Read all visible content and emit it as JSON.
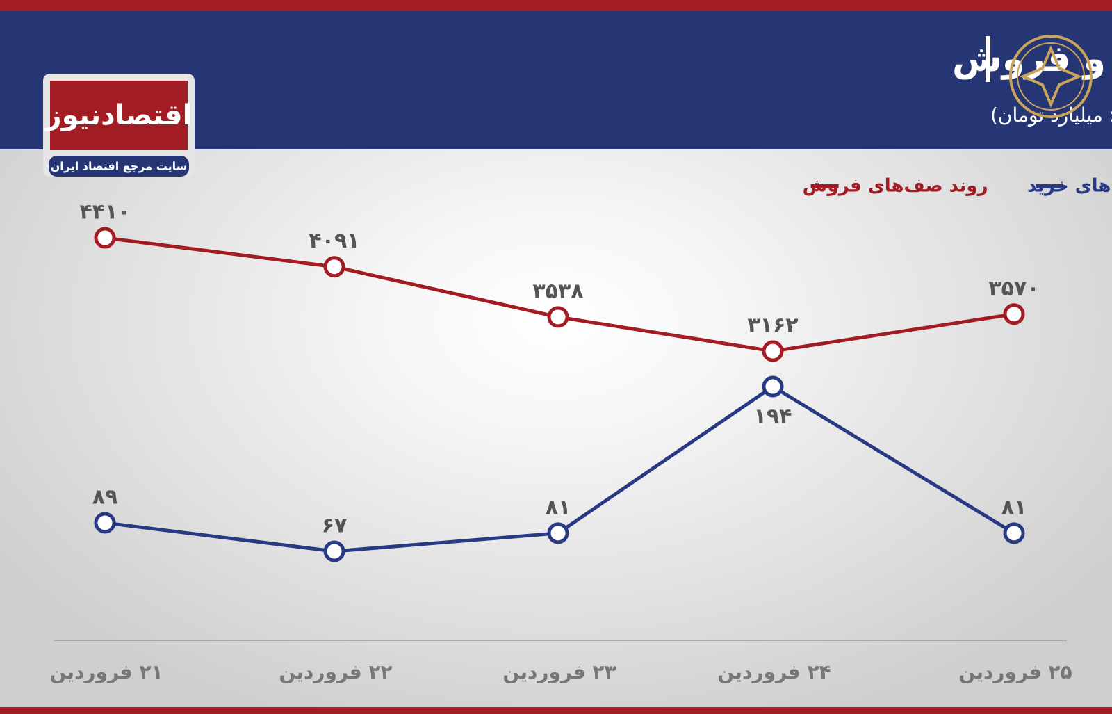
{
  "header": {
    "title": "روند هفته ارزش صف‌های خرید و فروش",
    "subtitle": "(واحد: میلیارد تومان)",
    "brand": "اقتصادنیوز",
    "brand_tagline": "سایت مرجع اقتصاد ایران"
  },
  "chart_data": {
    "type": "line",
    "categories": [
      "۲۱ فروردین",
      "۲۲ فروردین",
      "۲۳ فروردین",
      "۲۴ فروردین",
      "۲۵ فروردین"
    ],
    "series": [
      {
        "name": "روند صف‌های خرید",
        "color": "#273a83",
        "values": [
          89,
          67,
          81,
          194,
          81
        ],
        "value_labels": [
          "۸۹",
          "۶۷",
          "۸۱",
          "۱۹۴",
          "۸۱"
        ]
      },
      {
        "name": "روند صف‌های فروش",
        "color": "#a21c24",
        "axis": "y2",
        "values": [
          4410,
          4091,
          3538,
          3162,
          3570
        ],
        "value_labels": [
          "۴۴۱۰",
          "۴۰۹۱",
          "۳۵۳۸",
          "۳۱۶۲",
          "۳۵۷۰"
        ]
      }
    ],
    "ylim": [
      0,
      350
    ],
    "y2lim": [
      0,
      5000
    ]
  }
}
